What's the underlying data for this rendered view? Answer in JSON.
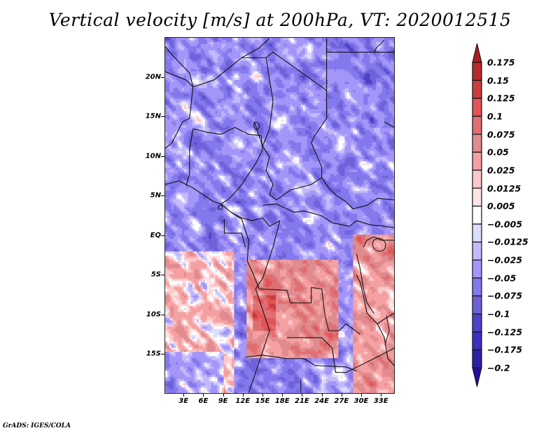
{
  "title": "Vertical velocity [m/s] at 200hPa, VT: 2020012515",
  "footer": "GrADS: IGES/COLA",
  "map": {
    "variable": "Vertical velocity",
    "units": "m/s",
    "level": "200hPa",
    "valid_time": "2020012515",
    "lat_range": [
      -20,
      25
    ],
    "lon_range": [
      0,
      35
    ],
    "lat_ticks": [
      {
        "value": 20,
        "label": "20N"
      },
      {
        "value": 15,
        "label": "15N"
      },
      {
        "value": 10,
        "label": "10N"
      },
      {
        "value": 5,
        "label": "5N"
      },
      {
        "value": 0,
        "label": "EQ"
      },
      {
        "value": -5,
        "label": "5S"
      },
      {
        "value": -10,
        "label": "10S"
      },
      {
        "value": -15,
        "label": "15S"
      }
    ],
    "lon_ticks": [
      {
        "value": 3,
        "label": "3E"
      },
      {
        "value": 6,
        "label": "6E"
      },
      {
        "value": 9,
        "label": "9E"
      },
      {
        "value": 12,
        "label": "12E"
      },
      {
        "value": 15,
        "label": "15E"
      },
      {
        "value": 18,
        "label": "18E"
      },
      {
        "value": 21,
        "label": "21E"
      },
      {
        "value": 24,
        "label": "24E"
      },
      {
        "value": 27,
        "label": "27E"
      },
      {
        "value": 30,
        "label": "30E"
      },
      {
        "value": 33,
        "label": "33E"
      }
    ]
  },
  "colorbar": {
    "levels": [
      {
        "label": "0.175",
        "value": 0.175
      },
      {
        "label": "0.15",
        "value": 0.15
      },
      {
        "label": "0.125",
        "value": 0.125
      },
      {
        "label": "0.1",
        "value": 0.1
      },
      {
        "label": "0.075",
        "value": 0.075
      },
      {
        "label": "0.05",
        "value": 0.05
      },
      {
        "label": "0.025",
        "value": 0.025
      },
      {
        "label": "0.0125",
        "value": 0.0125
      },
      {
        "label": "0.005",
        "value": 0.005
      },
      {
        "label": "−0.005",
        "value": -0.005
      },
      {
        "label": "−0.0125",
        "value": -0.0125
      },
      {
        "label": "−0.025",
        "value": -0.025
      },
      {
        "label": "−0.05",
        "value": -0.05
      },
      {
        "label": "−0.075",
        "value": -0.075
      },
      {
        "label": "−0.1",
        "value": -0.1
      },
      {
        "label": "−0.125",
        "value": -0.125
      },
      {
        "label": "−0.175",
        "value": -0.175
      },
      {
        "label": "−0.2",
        "value": -0.2
      }
    ],
    "colors": [
      "#a81e22",
      "#b52a2c",
      "#c93d3e",
      "#e25457",
      "#e06f72",
      "#e08b8e",
      "#f5a1a3",
      "#fbc8c9",
      "#fde4e5",
      "#ffffff",
      "#dcdcfd",
      "#c3b9fb",
      "#a496f8",
      "#8479ec",
      "#6f62d9",
      "#4e40c9",
      "#3d2ebd",
      "#2d20a8",
      "#240fa0"
    ]
  }
}
